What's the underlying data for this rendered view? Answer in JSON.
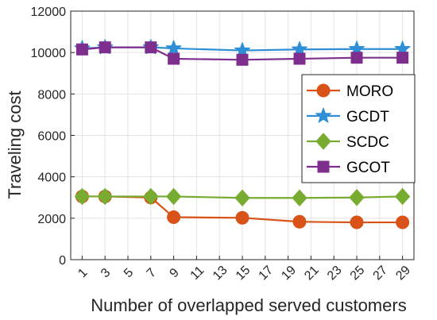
{
  "chart_data": {
    "type": "line",
    "xlabel": "Number of overlapped served customers",
    "ylabel": "Traveling cost",
    "xlim": [
      0,
      30
    ],
    "ylim": [
      0,
      12000
    ],
    "xticks": [
      1,
      3,
      5,
      7,
      9,
      11,
      13,
      15,
      17,
      19,
      21,
      23,
      25,
      27,
      29
    ],
    "yticks": [
      0,
      2000,
      4000,
      6000,
      8000,
      10000,
      12000
    ],
    "grid": true,
    "legend_position": "right",
    "x": [
      1,
      3,
      7,
      9,
      15,
      20,
      25,
      29
    ],
    "series": [
      {
        "name": "MORO",
        "color": "#D95319",
        "marker": "circle",
        "values": [
          3050,
          3050,
          3000,
          2050,
          2020,
          1830,
          1800,
          1800
        ]
      },
      {
        "name": "GCDT",
        "color": "#2E8FD6",
        "marker": "star",
        "values": [
          10200,
          10250,
          10250,
          10200,
          10100,
          10150,
          10170,
          10170
        ]
      },
      {
        "name": "SCDC",
        "color": "#77AC30",
        "marker": "diamond",
        "values": [
          3050,
          3050,
          3050,
          3050,
          2980,
          2980,
          3000,
          3050
        ]
      },
      {
        "name": "GCOT",
        "color": "#7E2F8E",
        "marker": "square",
        "values": [
          10150,
          10250,
          10250,
          9700,
          9650,
          9700,
          9750,
          9750
        ]
      }
    ]
  }
}
